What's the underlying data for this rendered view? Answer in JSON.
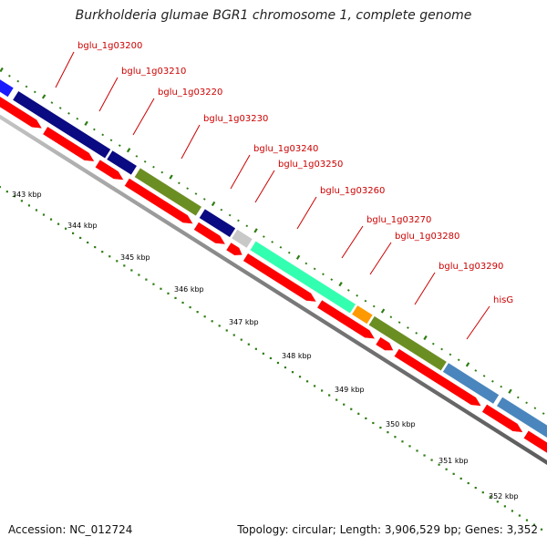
{
  "title": "Burkholderia glumae BGR1 chromosome 1, complete genome",
  "footer": {
    "accession": "Accession: NC_012724",
    "summary": "Topology: circular; Length: 3,906,529 bp; Genes: 3,352"
  },
  "colors": {
    "reverse_strand": "#ff0000",
    "backbone": "#8c8c8c",
    "tick": "#2e7d12",
    "label_text": "#cc0000",
    "label_line": "#cc0000"
  },
  "gene_labels": [
    "bglu_1g03200",
    "bglu_1g03210",
    "bglu_1g03220",
    "bglu_1g03230",
    "bglu_1g03240",
    "bglu_1g03250",
    "bglu_1g03260",
    "bglu_1g03270",
    "bglu_1g03280",
    "bglu_1g03290",
    "hisG"
  ],
  "kbp_labels": [
    "343 kbp",
    "344 kbp",
    "345 kbp",
    "346 kbp",
    "347 kbp",
    "348 kbp",
    "349 kbp",
    "350 kbp",
    "351 kbp",
    "352 kbp"
  ],
  "forward_features": [
    {
      "color": "#1a1aff"
    },
    {
      "color": "#0a0a82"
    },
    {
      "color": "#0a0a82"
    },
    {
      "color": "#6b8e23"
    },
    {
      "color": "#0a0a82"
    },
    {
      "color": "#c8c8c8"
    },
    {
      "color": "#33ffb0"
    },
    {
      "color": "#ff9900"
    },
    {
      "color": "#6b8e23"
    },
    {
      "color": "#4a86bd"
    },
    {
      "color": "#4a86bd"
    }
  ]
}
